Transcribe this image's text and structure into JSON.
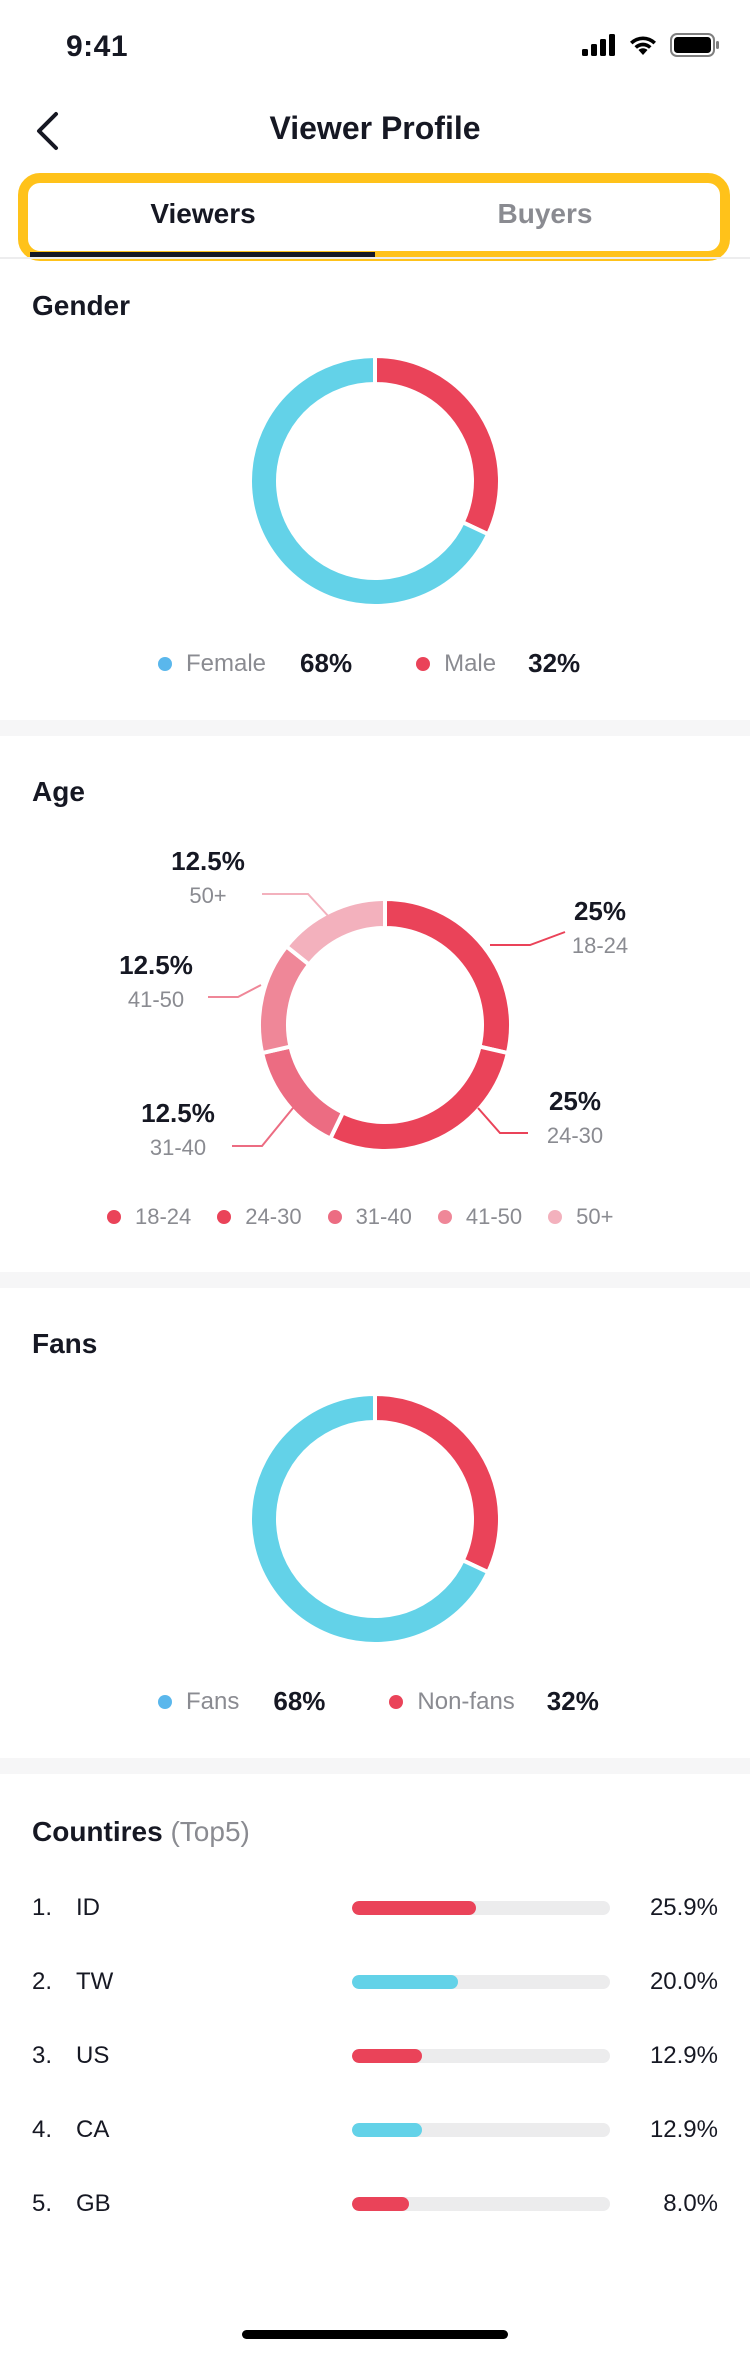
{
  "status_bar": {
    "time": "9:41"
  },
  "header": {
    "title": "Viewer Profile"
  },
  "tabs": [
    {
      "label": "Viewers",
      "active": true
    },
    {
      "label": "Buyers",
      "active": false
    }
  ],
  "colors": {
    "red": "#EA4359",
    "cyan": "#63D2E8",
    "legend_blue": "#5AB7EC",
    "highlight": "#FFC21A",
    "age_18_24": "#EA4359",
    "age_24_30": "#EA4359",
    "age_31_40": "#EC6C82",
    "age_41_50": "#EF8798",
    "age_50_plus": "#F3B1BD"
  },
  "gender": {
    "title": "Gender",
    "female_label": "Female",
    "female_pct": "68%",
    "male_label": "Male",
    "male_pct": "32%"
  },
  "age": {
    "title": "Age",
    "segments": [
      {
        "pct": "25%",
        "range": "18-24"
      },
      {
        "pct": "25%",
        "range": "24-30"
      },
      {
        "pct": "12.5%",
        "range": "31-40"
      },
      {
        "pct": "12.5%",
        "range": "41-50"
      },
      {
        "pct": "12.5%",
        "range": "50+"
      }
    ],
    "legend": [
      "18-24",
      "24-30",
      "31-40",
      "41-50",
      "50+"
    ]
  },
  "fans": {
    "title": "Fans",
    "fans_label": "Fans",
    "fans_pct": "68%",
    "nonfans_label": "Non-fans",
    "nonfans_pct": "32%"
  },
  "countries": {
    "title": "Countires",
    "subtitle": "(Top5)",
    "items": [
      {
        "rank": "1.",
        "code": "ID",
        "pct": "25.9%",
        "fill": 0.48,
        "color": "#EA4359"
      },
      {
        "rank": "2.",
        "code": "TW",
        "pct": "20.0%",
        "fill": 0.41,
        "color": "#63D2E8"
      },
      {
        "rank": "3.",
        "code": "US",
        "pct": "12.9%",
        "fill": 0.27,
        "color": "#EA4359"
      },
      {
        "rank": "4.",
        "code": "CA",
        "pct": "12.9%",
        "fill": 0.27,
        "color": "#63D2E8"
      },
      {
        "rank": "5.",
        "code": "GB",
        "pct": "8.0%",
        "fill": 0.22,
        "color": "#EA4359"
      }
    ]
  },
  "chart_data": [
    {
      "type": "pie",
      "title": "Gender",
      "categories": [
        "Female",
        "Male"
      ],
      "values": [
        68,
        32
      ]
    },
    {
      "type": "pie",
      "title": "Age",
      "categories": [
        "18-24",
        "24-30",
        "31-40",
        "41-50",
        "50+"
      ],
      "values": [
        25,
        25,
        12.5,
        12.5,
        12.5
      ]
    },
    {
      "type": "pie",
      "title": "Fans",
      "categories": [
        "Fans",
        "Non-fans"
      ],
      "values": [
        68,
        32
      ]
    },
    {
      "type": "bar",
      "title": "Countires (Top5)",
      "categories": [
        "ID",
        "TW",
        "US",
        "CA",
        "GB"
      ],
      "values": [
        25.9,
        20.0,
        12.9,
        12.9,
        8.0
      ]
    }
  ]
}
